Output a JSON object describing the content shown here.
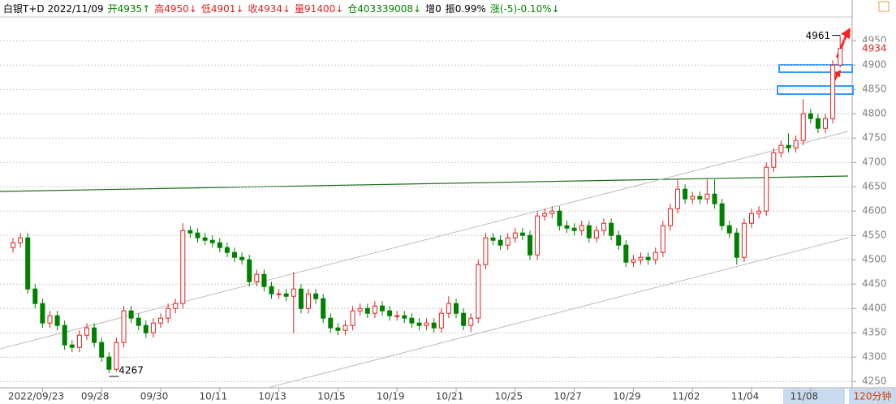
{
  "chart_data": {
    "type": "candlestick",
    "header": [
      {
        "text": "白银T+D 2022/11/09",
        "color": "#000000"
      },
      {
        "text": "开4935↑",
        "color": "#008000"
      },
      {
        "text": "高4950↓",
        "color": "#e02020"
      },
      {
        "text": "低4901↓",
        "color": "#e02020"
      },
      {
        "text": "收4934↓",
        "color": "#e02020"
      },
      {
        "text": "量91400↓",
        "color": "#e02020"
      },
      {
        "text": "仓403339008↓",
        "color": "#008000"
      },
      {
        "text": "增0",
        "color": "#000000"
      },
      {
        "text": "振0.99%",
        "color": "#000000"
      },
      {
        "text": "涨(-5)-0.10%↓",
        "color": "#008000"
      }
    ],
    "period": "120分钟",
    "categories": [
      null,
      null,
      null,
      null,
      "2022/09/23",
      null,
      null,
      null,
      null,
      null,
      null,
      null,
      "09/28",
      null,
      null,
      null,
      null,
      null,
      null,
      null,
      "09/30",
      null,
      null,
      null,
      null,
      null,
      null,
      null,
      "10/11",
      null,
      null,
      null,
      null,
      null,
      null,
      null,
      "10/13",
      null,
      null,
      null,
      null,
      null,
      null,
      null,
      "10/15",
      null,
      null,
      null,
      null,
      null,
      null,
      null,
      "10/19",
      null,
      null,
      null,
      null,
      null,
      null,
      null,
      "10/21",
      null,
      null,
      null,
      null,
      null,
      null,
      null,
      "10/25",
      null,
      null,
      null,
      null,
      null,
      null,
      null,
      "10/27",
      null,
      null,
      null,
      null,
      null,
      null,
      null,
      "10/29",
      null,
      null,
      null,
      null,
      null,
      null,
      null,
      "11/02",
      null,
      null,
      null,
      null,
      null,
      null,
      null,
      "11/04",
      null,
      null,
      null,
      null,
      null,
      null,
      null,
      "11/08",
      null,
      null,
      null,
      null
    ],
    "open": [
      4525,
      4535,
      4545,
      4440,
      4410,
      4370,
      4385,
      4365,
      4325,
      4320,
      4345,
      4360,
      4330,
      4300,
      4275,
      4330,
      4395,
      4380,
      4365,
      4350,
      4370,
      4380,
      4400,
      4410,
      4560,
      4555,
      4545,
      4540,
      4535,
      4525,
      4515,
      4505,
      4500,
      4455,
      4470,
      4445,
      4430,
      4430,
      4425,
      4440,
      4400,
      4430,
      4420,
      4380,
      4360,
      4355,
      4365,
      4395,
      4400,
      4390,
      4405,
      4395,
      4385,
      4385,
      4380,
      4370,
      4365,
      4370,
      4360,
      4390,
      4410,
      4390,
      4365,
      4380,
      4490,
      4545,
      4540,
      4530,
      4545,
      4555,
      4550,
      4510,
      4590,
      4595,
      4600,
      4570,
      4565,
      4560,
      4570,
      4545,
      4560,
      4575,
      4550,
      4530,
      4495,
      4500,
      4505,
      4500,
      4515,
      4570,
      4605,
      4645,
      4625,
      4630,
      4625,
      4635,
      4615,
      4570,
      4555,
      4505,
      4575,
      4595,
      4600,
      4690,
      4720,
      4735,
      4730,
      4745,
      4800,
      4790,
      4770,
      4790,
      4900
    ],
    "high": [
      4545,
      4555,
      4555,
      4450,
      4420,
      4395,
      4395,
      4375,
      4335,
      4355,
      4370,
      4370,
      4340,
      4310,
      4340,
      4405,
      4405,
      4390,
      4375,
      4380,
      4390,
      4410,
      4420,
      4575,
      4570,
      4565,
      4555,
      4550,
      4545,
      4535,
      4525,
      4515,
      4510,
      4480,
      4480,
      4455,
      4440,
      4440,
      4475,
      4450,
      4440,
      4440,
      4430,
      4390,
      4370,
      4375,
      4405,
      4410,
      4410,
      4415,
      4415,
      4405,
      4395,
      4395,
      4390,
      4380,
      4380,
      4380,
      4400,
      4425,
      4420,
      4400,
      4390,
      4500,
      4555,
      4555,
      4550,
      4555,
      4565,
      4565,
      4560,
      4600,
      4605,
      4610,
      4610,
      4580,
      4575,
      4580,
      4580,
      4570,
      4585,
      4585,
      4560,
      4540,
      4510,
      4515,
      4515,
      4525,
      4580,
      4615,
      4665,
      4655,
      4640,
      4640,
      4665,
      4665,
      4625,
      4580,
      4565,
      4585,
      4605,
      4610,
      4700,
      4730,
      4745,
      4760,
      4755,
      4830,
      4810,
      4800,
      4800,
      4910,
      4961
    ],
    "low": [
      4515,
      4525,
      4430,
      4400,
      4360,
      4360,
      4355,
      4315,
      4310,
      4310,
      4335,
      4320,
      4290,
      4267,
      4270,
      4320,
      4370,
      4355,
      4340,
      4340,
      4360,
      4370,
      4390,
      4400,
      4545,
      4535,
      4530,
      4525,
      4515,
      4505,
      4495,
      4490,
      4445,
      4445,
      4435,
      4420,
      4420,
      4415,
      4350,
      4390,
      4390,
      4410,
      4370,
      4350,
      4345,
      4345,
      4355,
      4385,
      4380,
      4380,
      4385,
      4375,
      4375,
      4370,
      4360,
      4355,
      4355,
      4350,
      4350,
      4380,
      4380,
      4355,
      4352,
      4370,
      4480,
      4530,
      4520,
      4520,
      4535,
      4540,
      4500,
      4500,
      4580,
      4585,
      4560,
      4555,
      4550,
      4550,
      4535,
      4535,
      4550,
      4540,
      4520,
      4485,
      4485,
      4490,
      4490,
      4490,
      4505,
      4560,
      4595,
      4615,
      4615,
      4615,
      4615,
      4605,
      4560,
      4545,
      4490,
      4495,
      4565,
      4585,
      4590,
      4680,
      4710,
      4720,
      4720,
      4735,
      4780,
      4760,
      4760,
      4780,
      4895
    ],
    "close": [
      4535,
      4545,
      4440,
      4410,
      4370,
      4385,
      4365,
      4325,
      4320,
      4345,
      4360,
      4330,
      4300,
      4275,
      4330,
      4395,
      4380,
      4365,
      4350,
      4370,
      4380,
      4400,
      4410,
      4560,
      4555,
      4545,
      4540,
      4535,
      4525,
      4515,
      4505,
      4500,
      4455,
      4470,
      4445,
      4430,
      4430,
      4425,
      4440,
      4400,
      4430,
      4420,
      4380,
      4360,
      4355,
      4365,
      4395,
      4400,
      4390,
      4405,
      4395,
      4385,
      4385,
      4380,
      4370,
      4365,
      4370,
      4360,
      4390,
      4410,
      4390,
      4365,
      4380,
      4490,
      4545,
      4540,
      4530,
      4545,
      4555,
      4550,
      4510,
      4590,
      4595,
      4600,
      4570,
      4565,
      4560,
      4570,
      4545,
      4560,
      4575,
      4550,
      4530,
      4495,
      4500,
      4505,
      4500,
      4515,
      4570,
      4605,
      4645,
      4625,
      4630,
      4625,
      4635,
      4615,
      4570,
      4555,
      4505,
      4575,
      4595,
      4600,
      4690,
      4720,
      4735,
      4730,
      4745,
      4800,
      4790,
      4770,
      4790,
      4900,
      4934
    ],
    "up_color": "#e02020",
    "down_color": "#008000",
    "ylim": [
      4237,
      4997
    ],
    "yticks": [
      4250,
      4300,
      4350,
      4400,
      4450,
      4500,
      4550,
      4600,
      4650,
      4700,
      4750,
      4800,
      4850,
      4900,
      4950
    ],
    "grid": true,
    "max_label": 4961,
    "min_label": 4267,
    "last_price": 4934,
    "last_price_color": "#e02020"
  }
}
